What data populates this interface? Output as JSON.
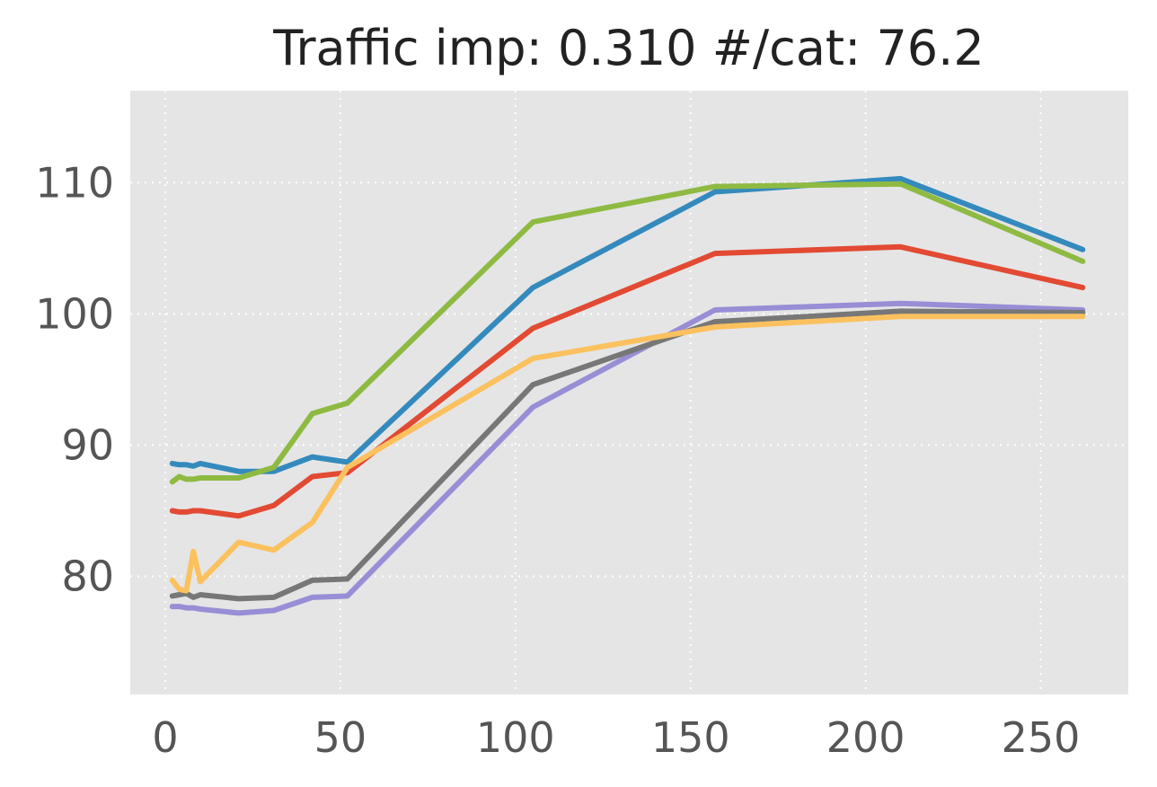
{
  "chart_data": {
    "type": "line",
    "title": "Traffic imp: 0.310 #/cat: 76.2",
    "xlabel": "",
    "ylabel": "",
    "xlim": [
      -10,
      275
    ],
    "ylim": [
      71,
      117
    ],
    "xticks": [
      0,
      50,
      100,
      150,
      200,
      250
    ],
    "yticks": [
      80,
      90,
      100,
      110
    ],
    "grid": true,
    "grid_style": "dotted",
    "background": "#e5e5e5",
    "series": [
      {
        "color": "#348abd",
        "x": [
          2,
          4,
          6,
          8,
          10,
          21,
          31,
          42,
          52,
          105,
          157,
          210,
          262
        ],
        "y": [
          88.6,
          88.5,
          88.5,
          88.4,
          88.6,
          88.0,
          88.0,
          89.1,
          88.7,
          102.0,
          109.3,
          110.3,
          104.9
        ]
      },
      {
        "color": "#8eba42",
        "x": [
          2,
          4,
          6,
          8,
          10,
          21,
          31,
          42,
          52,
          105,
          157,
          210,
          262
        ],
        "y": [
          87.2,
          87.6,
          87.4,
          87.4,
          87.5,
          87.5,
          88.3,
          92.4,
          93.2,
          107.0,
          109.7,
          109.9,
          104.0
        ]
      },
      {
        "color": "#e24a33",
        "x": [
          2,
          4,
          6,
          8,
          10,
          21,
          31,
          42,
          52,
          105,
          157,
          210,
          262
        ],
        "y": [
          85.0,
          84.9,
          84.9,
          85.0,
          85.0,
          84.6,
          85.4,
          87.6,
          87.9,
          98.9,
          104.6,
          105.1,
          102.0
        ]
      },
      {
        "color": "#988ed5",
        "x": [
          2,
          4,
          6,
          8,
          10,
          21,
          31,
          42,
          52,
          105,
          157,
          210,
          262
        ],
        "y": [
          77.7,
          77.7,
          77.6,
          77.6,
          77.5,
          77.2,
          77.4,
          78.4,
          78.5,
          92.9,
          100.3,
          100.8,
          100.3
        ]
      },
      {
        "color": "#777777",
        "x": [
          2,
          4,
          6,
          8,
          10,
          21,
          31,
          42,
          52,
          105,
          157,
          210,
          262
        ],
        "y": [
          78.5,
          78.6,
          78.7,
          78.4,
          78.6,
          78.3,
          78.4,
          79.7,
          79.8,
          94.6,
          99.4,
          100.2,
          100.1
        ]
      },
      {
        "color": "#fbc15e",
        "x": [
          2,
          4,
          6,
          8,
          10,
          21,
          31,
          42,
          52,
          105,
          157,
          210,
          262
        ],
        "y": [
          79.7,
          79.0,
          78.9,
          81.9,
          79.6,
          82.6,
          82.0,
          84.1,
          88.3,
          96.6,
          99.0,
          99.8,
          99.8
        ]
      }
    ]
  }
}
